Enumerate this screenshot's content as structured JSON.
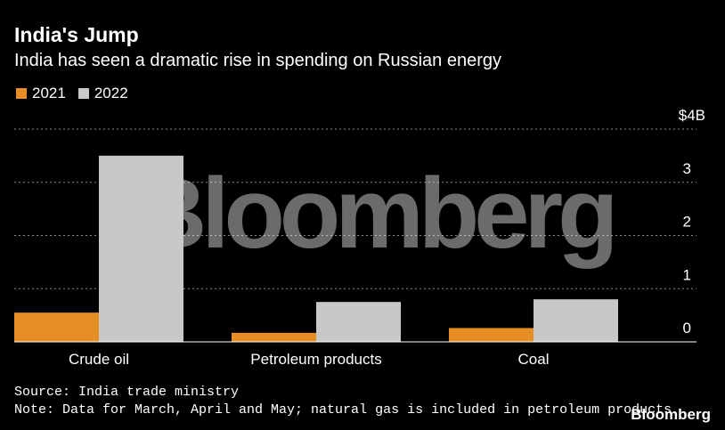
{
  "header": {
    "title": "India's Jump",
    "subtitle": "India has seen a dramatic rise in spending on Russian energy"
  },
  "legend": {
    "items": [
      {
        "label": "2021",
        "color": "#e58e24"
      },
      {
        "label": "2022",
        "color": "#c8c8c8"
      }
    ]
  },
  "chart_data": {
    "type": "bar",
    "title": "India's Jump",
    "subtitle": "India has seen a dramatic rise in spending on Russian energy",
    "categories": [
      "Crude oil",
      "Petroleum products",
      "Coal"
    ],
    "series": [
      {
        "name": "2021",
        "values": [
          0.55,
          0.17,
          0.26
        ],
        "color": "#e58e24"
      },
      {
        "name": "2022",
        "values": [
          3.5,
          0.75,
          0.8
        ],
        "color": "#c8c8c8"
      }
    ],
    "ylim": [
      0,
      4
    ],
    "yticks": [
      "0",
      "1",
      "2",
      "3",
      "$4B"
    ],
    "grid": true,
    "legend_position": "top-left",
    "watermark": "Bloomberg"
  },
  "footer": {
    "source": "Source: India trade ministry",
    "note": "Note: Data for March, April and May; natural gas is included in petroleum products",
    "brand": "Bloomberg"
  }
}
